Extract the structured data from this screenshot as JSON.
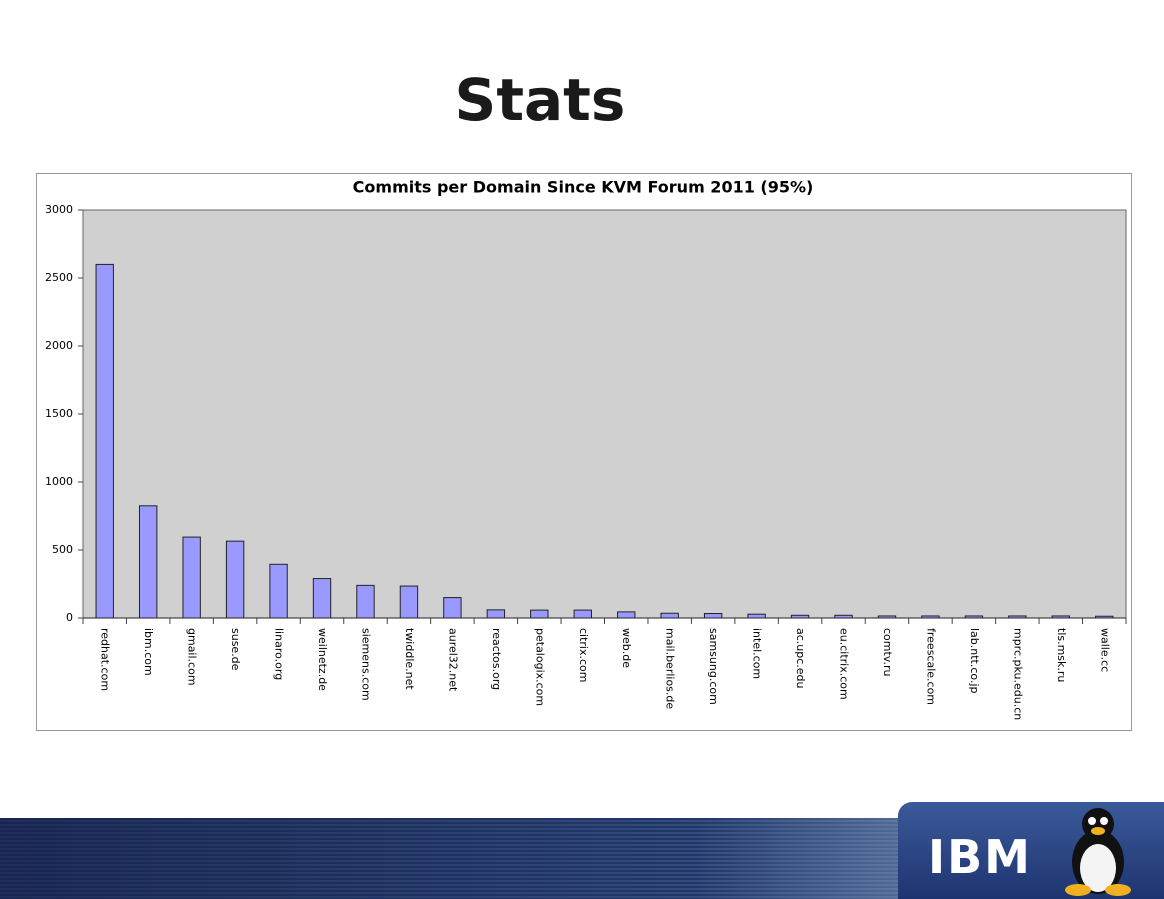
{
  "slide": {
    "title": "Stats"
  },
  "footer": {
    "logo": "IBM"
  },
  "chart_data": {
    "type": "bar",
    "title": "Commits per Domain Since KVM Forum 2011 (95%)",
    "categories": [
      "redhat.com",
      "ibm.com",
      "gmail.com",
      "suse.de",
      "linaro.org",
      "weilnetz.de",
      "siemens.com",
      "twiddle.net",
      "aurel32.net",
      "reactos.org",
      "petalogix.com",
      "citrix.com",
      "web.de",
      "mail.berlios.de",
      "samsung.com",
      "intel.com",
      "ac.upc.edu",
      "eu.citrix.com",
      "comtv.ru",
      "freescale.com",
      "lab.ntt.co.jp",
      "mprc.pku.edu.cn",
      "tls.msk.ru",
      "walle.cc"
    ],
    "values": [
      2600,
      825,
      595,
      565,
      395,
      290,
      240,
      235,
      150,
      60,
      58,
      58,
      45,
      35,
      33,
      28,
      20,
      20,
      15,
      15,
      15,
      15,
      15,
      13
    ],
    "color": "#9999ff",
    "ylim": [
      0,
      3000
    ],
    "yticks": [
      0,
      500,
      1000,
      1500,
      2000,
      2500,
      3000
    ],
    "grid": false
  }
}
